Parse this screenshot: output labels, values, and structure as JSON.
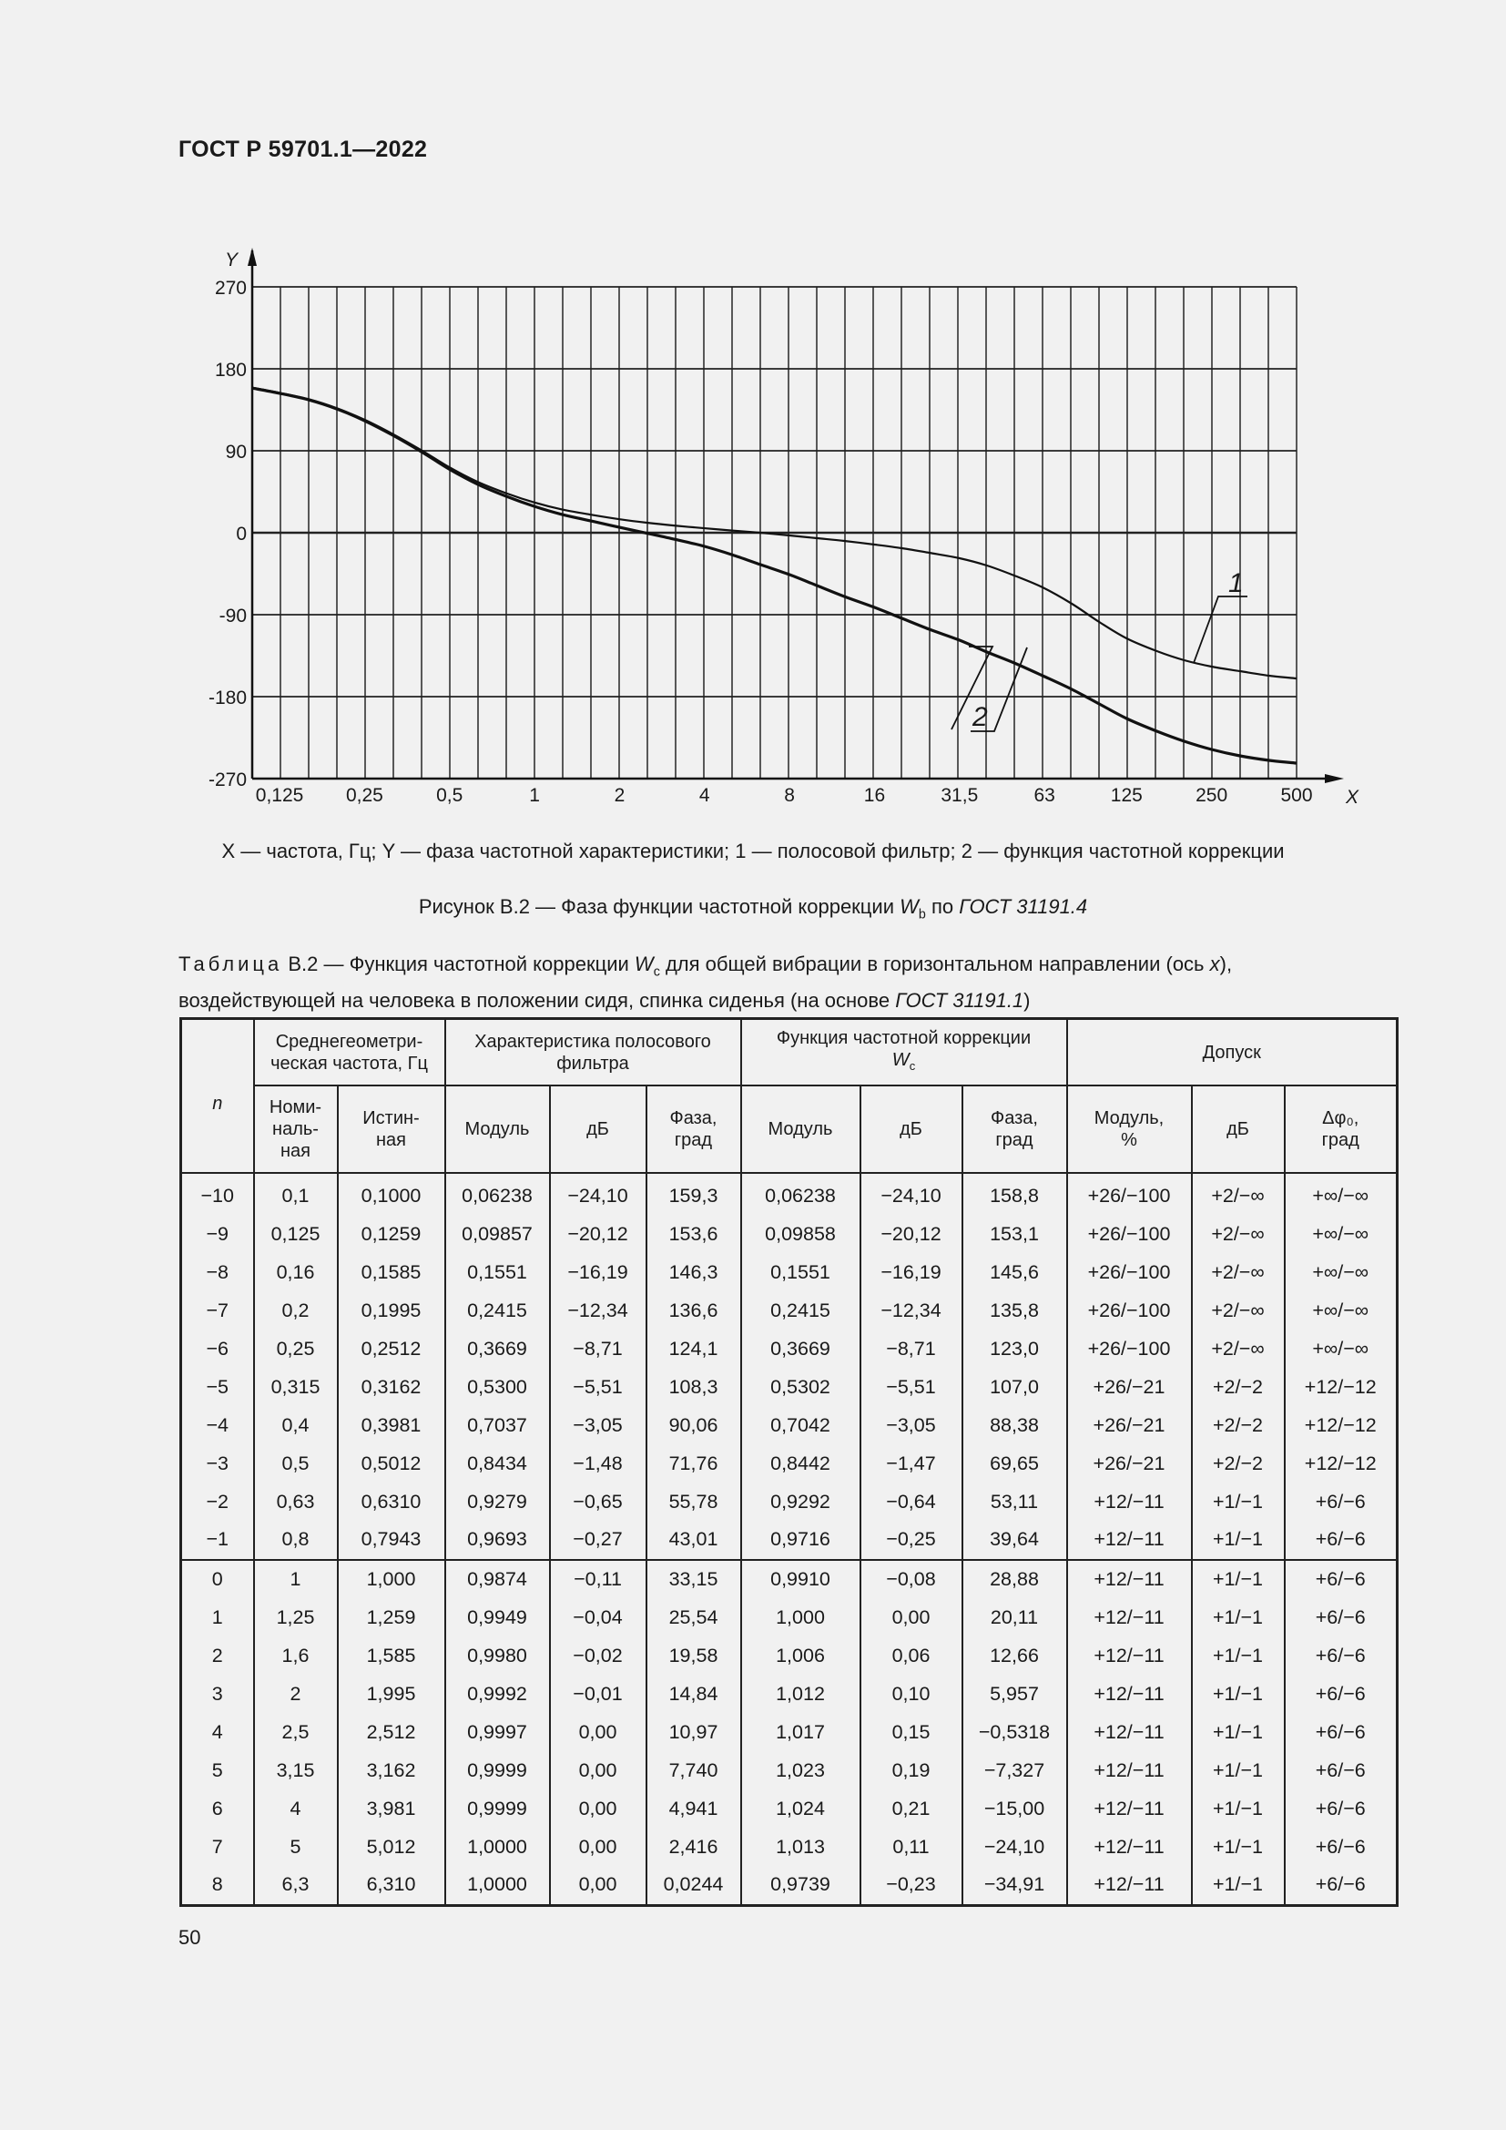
{
  "header": {
    "doc_id": "ГОСТ Р 59701.1—2022"
  },
  "figure": {
    "legend_text": "X — частота, Гц; Y — фаза частотной характеристики; 1 — полосовой фильтр; 2 — функция частотной коррекции",
    "caption_prefix": "Рисунок В.2 — Фаза функции частотной коррекции ",
    "caption_symbol": "W",
    "caption_sub": "b",
    "caption_mid": " по ",
    "caption_ref": "ГОСТ 31191.4"
  },
  "chart_data": {
    "type": "line",
    "title": "Фаза функции частотной коррекции Wb",
    "xlabel": "X",
    "ylabel": "Y",
    "x_scale": "log",
    "x_ticks": [
      "0,125",
      "0,25",
      "0,5",
      "1",
      "2",
      "4",
      "8",
      "16",
      "31,5",
      "63",
      "125",
      "250",
      "500"
    ],
    "y_ticks": [
      270,
      180,
      90,
      0,
      -90,
      -180,
      -270
    ],
    "ylim": [
      -270,
      270
    ],
    "xlim": [
      0.1,
      500
    ],
    "grid": true,
    "annotations": [
      "1",
      "2"
    ],
    "x": [
      0.1,
      0.125,
      0.16,
      0.2,
      0.25,
      0.315,
      0.4,
      0.5,
      0.63,
      0.8,
      1,
      1.25,
      1.6,
      2,
      2.5,
      3.15,
      4,
      5,
      6.3,
      8,
      10,
      12.5,
      16,
      20,
      25,
      31.5,
      40,
      50,
      63,
      80,
      100,
      125,
      160,
      200,
      250,
      315,
      400,
      500
    ],
    "series": [
      {
        "name": "1 — полосовой фильтр",
        "values": [
          159.3,
          153.6,
          146.3,
          136.6,
          124.1,
          108.3,
          90.06,
          71.76,
          55.78,
          43.01,
          33.15,
          25.54,
          19.58,
          14.84,
          10.97,
          7.74,
          4.94,
          2.42,
          0.02,
          -3,
          -6,
          -9,
          -13,
          -17,
          -22,
          -28,
          -36,
          -47,
          -60,
          -78,
          -98,
          -116,
          -130,
          -140,
          -147,
          -152,
          -157,
          -160
        ]
      },
      {
        "name": "2 — функция частотной коррекции",
        "values": [
          158.8,
          153.1,
          145.6,
          135.8,
          123.0,
          107.0,
          88.38,
          69.65,
          53.11,
          39.64,
          28.88,
          20.11,
          12.66,
          5.96,
          -0.53,
          -7.33,
          -15.0,
          -24.1,
          -34.91,
          -46,
          -58,
          -70,
          -82,
          -94,
          -106,
          -118,
          -131,
          -143,
          -157,
          -172,
          -188,
          -204,
          -218,
          -229,
          -238,
          -245,
          -250,
          -253
        ]
      }
    ]
  },
  "table": {
    "caption_label": "Таблица",
    "caption_text_1": " В.2 — Функция частотной коррекции ",
    "caption_sym": "W",
    "caption_sub": "c",
    "caption_text_2": " для общей вибрации в горизонтальном направлении (ось ",
    "caption_axis": "x",
    "caption_text_3": "),",
    "caption_line2": "воздействующей на человека в положении сидя, спинка сиденья (на основе ",
    "caption_ref": "ГОСТ 31191.1",
    "caption_end": ")",
    "headers": {
      "n": "n",
      "freq_group": "Среднегеометри-ческая частота, Гц",
      "filter_group": "Характеристика полосового фильтра",
      "wc_group": "Функция частотной коррекции",
      "wc_sym": "W",
      "wc_sub": "c",
      "tol_group": "Допуск",
      "nominal": "Номи-наль-ная",
      "true": "Истин-ная",
      "modulus": "Модуль",
      "db": "дБ",
      "phase": "Фаза, град",
      "modulus2": "Модуль",
      "db2": "дБ",
      "phase2": "Фаза, град",
      "tol_mod": "Модуль, %",
      "tol_db": "дБ",
      "tol_phase": "Δφ₀, град"
    },
    "rows": [
      [
        "−10",
        "0,1",
        "0,1000",
        "0,06238",
        "−24,10",
        "159,3",
        "0,06238",
        "−24,10",
        "158,8",
        "+26/−100",
        "+2/−∞",
        "+∞/−∞"
      ],
      [
        "−9",
        "0,125",
        "0,1259",
        "0,09857",
        "−20,12",
        "153,6",
        "0,09858",
        "−20,12",
        "153,1",
        "+26/−100",
        "+2/−∞",
        "+∞/−∞"
      ],
      [
        "−8",
        "0,16",
        "0,1585",
        "0,1551",
        "−16,19",
        "146,3",
        "0,1551",
        "−16,19",
        "145,6",
        "+26/−100",
        "+2/−∞",
        "+∞/−∞"
      ],
      [
        "−7",
        "0,2",
        "0,1995",
        "0,2415",
        "−12,34",
        "136,6",
        "0,2415",
        "−12,34",
        "135,8",
        "+26/−100",
        "+2/−∞",
        "+∞/−∞"
      ],
      [
        "−6",
        "0,25",
        "0,2512",
        "0,3669",
        "−8,71",
        "124,1",
        "0,3669",
        "−8,71",
        "123,0",
        "+26/−100",
        "+2/−∞",
        "+∞/−∞"
      ],
      [
        "−5",
        "0,315",
        "0,3162",
        "0,5300",
        "−5,51",
        "108,3",
        "0,5302",
        "−5,51",
        "107,0",
        "+26/−21",
        "+2/−2",
        "+12/−12"
      ],
      [
        "−4",
        "0,4",
        "0,3981",
        "0,7037",
        "−3,05",
        "90,06",
        "0,7042",
        "−3,05",
        "88,38",
        "+26/−21",
        "+2/−2",
        "+12/−12"
      ],
      [
        "−3",
        "0,5",
        "0,5012",
        "0,8434",
        "−1,48",
        "71,76",
        "0,8442",
        "−1,47",
        "69,65",
        "+26/−21",
        "+2/−2",
        "+12/−12"
      ],
      [
        "−2",
        "0,63",
        "0,6310",
        "0,9279",
        "−0,65",
        "55,78",
        "0,9292",
        "−0,64",
        "53,11",
        "+12/−11",
        "+1/−1",
        "+6/−6"
      ],
      [
        "−1",
        "0,8",
        "0,7943",
        "0,9693",
        "−0,27",
        "43,01",
        "0,9716",
        "−0,25",
        "39,64",
        "+12/−11",
        "+1/−1",
        "+6/−6"
      ],
      [
        "0",
        "1",
        "1,000",
        "0,9874",
        "−0,11",
        "33,15",
        "0,9910",
        "−0,08",
        "28,88",
        "+12/−11",
        "+1/−1",
        "+6/−6"
      ],
      [
        "1",
        "1,25",
        "1,259",
        "0,9949",
        "−0,04",
        "25,54",
        "1,000",
        "0,00",
        "20,11",
        "+12/−11",
        "+1/−1",
        "+6/−6"
      ],
      [
        "2",
        "1,6",
        "1,585",
        "0,9980",
        "−0,02",
        "19,58",
        "1,006",
        "0,06",
        "12,66",
        "+12/−11",
        "+1/−1",
        "+6/−6"
      ],
      [
        "3",
        "2",
        "1,995",
        "0,9992",
        "−0,01",
        "14,84",
        "1,012",
        "0,10",
        "5,957",
        "+12/−11",
        "+1/−1",
        "+6/−6"
      ],
      [
        "4",
        "2,5",
        "2,512",
        "0,9997",
        "0,00",
        "10,97",
        "1,017",
        "0,15",
        "−0,5318",
        "+12/−11",
        "+1/−1",
        "+6/−6"
      ],
      [
        "5",
        "3,15",
        "3,162",
        "0,9999",
        "0,00",
        "7,740",
        "1,023",
        "0,19",
        "−7,327",
        "+12/−11",
        "+1/−1",
        "+6/−6"
      ],
      [
        "6",
        "4",
        "3,981",
        "0,9999",
        "0,00",
        "4,941",
        "1,024",
        "0,21",
        "−15,00",
        "+12/−11",
        "+1/−1",
        "+6/−6"
      ],
      [
        "7",
        "5",
        "5,012",
        "1,0000",
        "0,00",
        "2,416",
        "1,013",
        "0,11",
        "−24,10",
        "+12/−11",
        "+1/−1",
        "+6/−6"
      ],
      [
        "8",
        "6,3",
        "6,310",
        "1,0000",
        "0,00",
        "0,0244",
        "0,9739",
        "−0,23",
        "−34,91",
        "+12/−11",
        "+1/−1",
        "+6/−6"
      ]
    ]
  },
  "footer": {
    "page_number": "50"
  }
}
